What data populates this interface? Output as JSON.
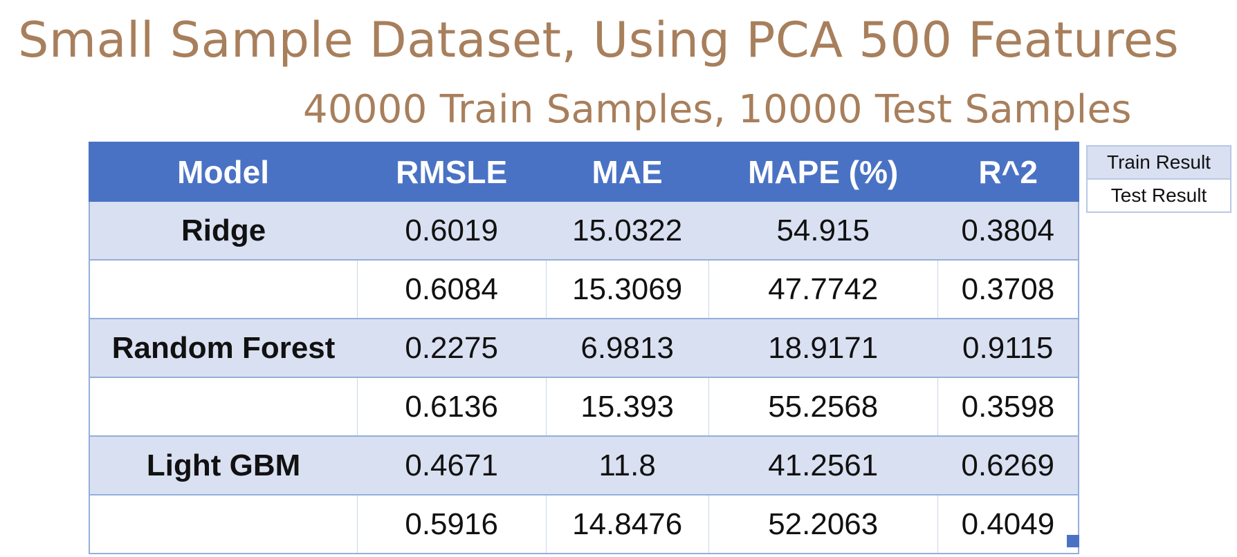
{
  "title": "Small Sample Dataset, Using PCA 500 Features",
  "subtitle": "40000 Train Samples, 10000 Test Samples",
  "table": {
    "headers": [
      "Model",
      "RMSLE",
      "MAE",
      "MAPE (%)",
      "R^2"
    ],
    "rows": [
      {
        "model": "Ridge",
        "rmsle": "0.6019",
        "mae": "15.0322",
        "mape": "54.915",
        "r2": "0.3804"
      },
      {
        "model": "",
        "rmsle": "0.6084",
        "mae": "15.3069",
        "mape": "47.7742",
        "r2": "0.3708"
      },
      {
        "model": "Random Forest",
        "rmsle": "0.2275",
        "mae": "6.9813",
        "mape": "18.9171",
        "r2": "0.9115"
      },
      {
        "model": "",
        "rmsle": "0.6136",
        "mae": "15.393",
        "mape": "55.2568",
        "r2": "0.3598"
      },
      {
        "model": "Light GBM",
        "rmsle": "0.4671",
        "mae": "11.8",
        "mape": "41.2561",
        "r2": "0.6269"
      },
      {
        "model": "",
        "rmsle": "0.5916",
        "mae": "14.8476",
        "mape": "52.2063",
        "r2": "0.4049"
      }
    ]
  },
  "legend": {
    "train_label": "Train Result",
    "test_label": "Test Result"
  },
  "colors": {
    "title": "#a87f5c",
    "header_bg": "#4a72c4",
    "train_row_bg": "#d9e0f1",
    "test_row_bg": "#ffffff"
  }
}
